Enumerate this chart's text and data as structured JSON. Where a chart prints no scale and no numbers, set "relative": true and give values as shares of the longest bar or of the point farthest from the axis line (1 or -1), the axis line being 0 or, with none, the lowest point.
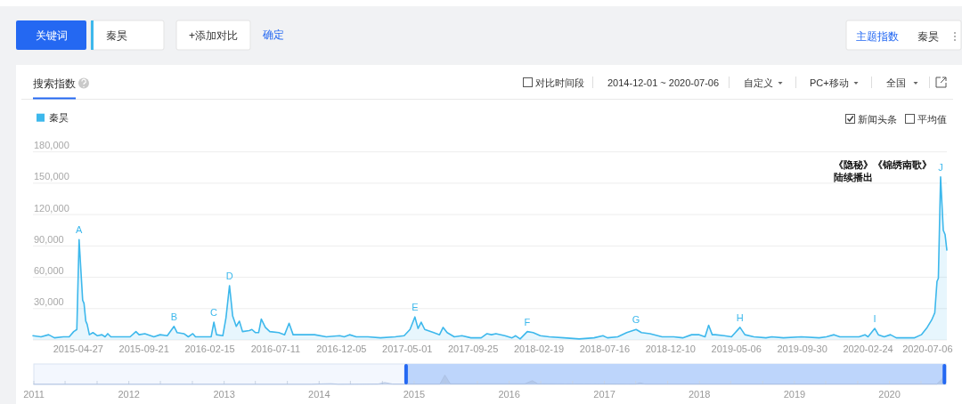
{
  "chart_data": [
    {
      "type": "area",
      "title": "搜索指数",
      "x": [
        "2015-01-16",
        "2015-02-03",
        "2015-02-20",
        "2015-03-05",
        "2015-03-25",
        "2015-04-07",
        "2015-04-17",
        "2015-04-24",
        "2015-04-29",
        "2015-05-07",
        "2015-05-10",
        "2015-05-14",
        "2015-05-17",
        "2015-05-22",
        "2015-05-30",
        "2015-06-09",
        "2015-06-19",
        "2015-06-26",
        "2015-07-02",
        "2015-07-09",
        "2015-08-08",
        "2015-08-21",
        "2015-09-03",
        "2015-09-10",
        "2015-09-23",
        "2015-10-13",
        "2015-10-27",
        "2015-11-12",
        "2015-11-27",
        "2015-12-04",
        "2015-12-19",
        "2015-12-29",
        "2016-01-08",
        "2016-01-14",
        "2016-02-10",
        "2016-02-18",
        "2016-02-24",
        "2016-03-01",
        "2016-03-15",
        "2016-03-22",
        "2016-03-30",
        "2016-04-06",
        "2016-04-14",
        "2016-04-21",
        "2016-04-28",
        "2016-05-13",
        "2016-05-19",
        "2016-05-27",
        "2016-06-03",
        "2016-06-09",
        "2016-06-18",
        "2016-06-28",
        "2016-07-18",
        "2016-07-31",
        "2016-08-10",
        "2016-08-19",
        "2016-09-09",
        "2016-10-06",
        "2016-11-01",
        "2016-12-01",
        "2016-12-11",
        "2016-12-23",
        "2017-01-07",
        "2017-02-02",
        "2017-03-02",
        "2017-04-04",
        "2017-04-24",
        "2017-05-07",
        "2017-05-18",
        "2017-05-25",
        "2017-06-01",
        "2017-06-09",
        "2017-06-29",
        "2017-07-12",
        "2017-07-20",
        "2017-07-29",
        "2017-08-14",
        "2017-08-31",
        "2017-09-20",
        "2017-10-13",
        "2017-10-26",
        "2017-11-05",
        "2017-11-15",
        "2017-12-05",
        "2017-12-21",
        "2017-12-29",
        "2018-01-08",
        "2018-01-24",
        "2018-02-06",
        "2018-02-22",
        "2018-03-14",
        "2018-04-16",
        "2018-05-20",
        "2018-06-22",
        "2018-07-12",
        "2018-07-22",
        "2018-08-14",
        "2018-09-03",
        "2018-09-24",
        "2018-10-06",
        "2018-10-25",
        "2018-11-21",
        "2018-12-17",
        "2019-01-06",
        "2019-01-26",
        "2019-02-12",
        "2019-02-25",
        "2019-03-05",
        "2019-03-13",
        "2019-03-20",
        "2019-04-09",
        "2019-04-25",
        "2019-05-14",
        "2019-05-25",
        "2019-06-14",
        "2019-07-11",
        "2019-07-24",
        "2019-08-19",
        "2019-09-28",
        "2019-11-07",
        "2019-11-23",
        "2019-12-10",
        "2019-12-23",
        "2020-01-19",
        "2020-02-04",
        "2020-02-17",
        "2020-02-24",
        "2020-03-10",
        "2020-03-18",
        "2020-03-31",
        "2020-04-14",
        "2020-04-27",
        "2020-06-06",
        "2020-06-22",
        "2020-07-05",
        "2020-07-15",
        "2020-07-22",
        "2020-07-27",
        "2020-07-30",
        "2020-08-04",
        "2020-08-10",
        "2020-08-14",
        "2020-08-18"
      ],
      "series": [
        {
          "name": "秦昊",
          "color": "#3db8ec",
          "values": [
            4000,
            3000,
            5000,
            2000,
            3000,
            3000,
            8000,
            10000,
            96000,
            38000,
            35000,
            18000,
            15000,
            5000,
            7000,
            4000,
            5000,
            3000,
            6000,
            3000,
            3000,
            3000,
            8000,
            5000,
            6000,
            3000,
            5000,
            4000,
            13000,
            7000,
            6000,
            3000,
            6000,
            3000,
            3000,
            3000,
            17000,
            5000,
            4000,
            21000,
            52000,
            23000,
            13000,
            18000,
            8000,
            9000,
            10000,
            7000,
            7000,
            20000,
            12000,
            8000,
            7000,
            5000,
            16000,
            5000,
            5000,
            5000,
            3000,
            4000,
            3000,
            5000,
            3000,
            3000,
            2000,
            3000,
            4000,
            10000,
            22000,
            11000,
            17000,
            10000,
            7000,
            5000,
            12000,
            7000,
            3000,
            4000,
            2000,
            2000,
            6000,
            5000,
            6000,
            4000,
            2000,
            4000,
            1000,
            8000,
            7000,
            4000,
            3000,
            2000,
            1000,
            2000,
            4000,
            2000,
            3000,
            7000,
            10000,
            7000,
            6000,
            3000,
            3000,
            2000,
            5000,
            5000,
            3000,
            14000,
            5000,
            5000,
            4000,
            3000,
            12000,
            5000,
            3000,
            2000,
            3000,
            2000,
            3000,
            2000,
            3000,
            5000,
            3000,
            3000,
            3000,
            5000,
            3000,
            11000,
            5000,
            3000,
            5000,
            2000,
            2000,
            5000,
            12000,
            19000,
            26000,
            56000,
            59000,
            156000,
            105000,
            101000,
            86000
          ]
        }
      ],
      "xlim": [
        "2015-01-16",
        "2020-08-18"
      ],
      "xticks": [
        "2015-04-27",
        "2015-09-21",
        "2016-02-15",
        "2016-07-11",
        "2016-12-05",
        "2017-05-01",
        "2017-09-25",
        "2018-02-19",
        "2018-07-16",
        "2018-12-10",
        "2019-05-06",
        "2019-09-30",
        "2020-02-24",
        "2020-07-06"
      ],
      "ylim": [
        0,
        180000
      ],
      "yticks": [
        {
          "value": 0,
          "label": null
        },
        {
          "value": 30000,
          "label": "30,000"
        },
        {
          "value": 60000,
          "label": "60,000"
        },
        {
          "value": 90000,
          "label": "90,000"
        },
        {
          "value": 120000,
          "label": "120,000"
        },
        {
          "value": 150000,
          "label": "150,000"
        },
        {
          "value": 180000,
          "label": "180,000"
        }
      ],
      "grid": "y",
      "legend": "top left",
      "annotations": [
        {
          "text": "A",
          "x": "2015-04-29",
          "y": 96000
        },
        {
          "text": "B",
          "x": "2015-11-27",
          "y": 13000
        },
        {
          "text": "C",
          "x": "2016-02-24",
          "y": 17000
        },
        {
          "text": "D",
          "x": "2016-03-30",
          "y": 52000
        },
        {
          "text": "E",
          "x": "2017-05-18",
          "y": 22000
        },
        {
          "text": "F",
          "x": "2018-01-24",
          "y": 8000
        },
        {
          "text": "G",
          "x": "2018-09-24",
          "y": 10000
        },
        {
          "text": "H",
          "x": "2019-05-14",
          "y": 12000
        },
        {
          "text": "I",
          "x": "2020-03-10",
          "y": 11000
        },
        {
          "text": "J",
          "x": "2020-08-04",
          "y": 156000
        },
        "关键词",
        "秦昊",
        "+添加对比",
        "确定",
        "主题指数",
        "秦昊",
        "对比时间段",
        "2014-12-01 ~ 2020-07-06",
        "自定义",
        "PC+移动",
        "全国",
        "新闻头条",
        "平均值",
        "《隐秘》《锦绣南歌》陆续播出"
      ]
    },
    {
      "type": "area",
      "relative": true,
      "x": [
        "2011-01-01",
        "2013-12-01",
        "2014-02-15",
        "2014-03-15",
        "2014-08-15",
        "2014-09-10",
        "2014-10-10",
        "2015-04-10",
        "2015-04-29",
        "2015-05-20",
        "2016-03-01",
        "2016-03-30",
        "2016-04-20",
        "2017-05-01",
        "2017-05-18",
        "2017-06-05",
        "2020-07-01",
        "2020-07-22",
        "2020-08-04"
      ],
      "values": [
        0.01,
        0.01,
        0.04,
        0.01,
        0.02,
        0.1,
        0.02,
        0.02,
        0.5,
        0.03,
        0.03,
        0.2,
        0.03,
        0.02,
        0.08,
        0.02,
        0.02,
        0.3,
        1
      ],
      "color": "#a9bedf",
      "xlim": [
        "2011-01-01",
        "2020-08-05"
      ],
      "xticks": [
        "2011",
        {
          "value": "2011-05",
          "label": null
        },
        {
          "value": "2011-09",
          "label": null
        },
        "2012",
        {
          "value": "2012-05",
          "label": null
        },
        {
          "value": "2012-09",
          "label": null
        },
        "2013",
        {
          "value": "2013-05",
          "label": null
        },
        {
          "value": "2013-09",
          "label": null
        },
        "2014",
        {
          "value": "2014-05",
          "label": null
        },
        {
          "value": "2014-09",
          "label": null
        },
        "2015",
        {
          "value": "2015-05",
          "label": null
        },
        {
          "value": "2015-09",
          "label": null
        },
        "2016",
        {
          "value": "2016-05",
          "label": null
        },
        {
          "value": "2016-09",
          "label": null
        },
        "2017",
        {
          "value": "2017-05",
          "label": null
        },
        {
          "value": "2017-09",
          "label": null
        },
        "2018",
        {
          "value": "2018-05",
          "label": null
        },
        {
          "value": "2018-09",
          "label": null
        },
        "2019",
        {
          "value": "2019-05",
          "label": null
        },
        {
          "value": "2019-09",
          "label": null
        },
        "2020",
        {
          "value": "2020-05",
          "label": null
        }
      ],
      "tick_labels": "x",
      "bands": [
        {
          "axis": "x",
          "from": "2014-12-01",
          "to": "2020-07-30",
          "color": "#bdd5fb"
        }
      ],
      "ref_lines": [
        {
          "axis": "x",
          "value": "2014-12-01",
          "color": "#2468f2"
        },
        {
          "axis": "x",
          "value": "2020-07-30",
          "color": "#2468f2"
        }
      ]
    }
  ]
}
